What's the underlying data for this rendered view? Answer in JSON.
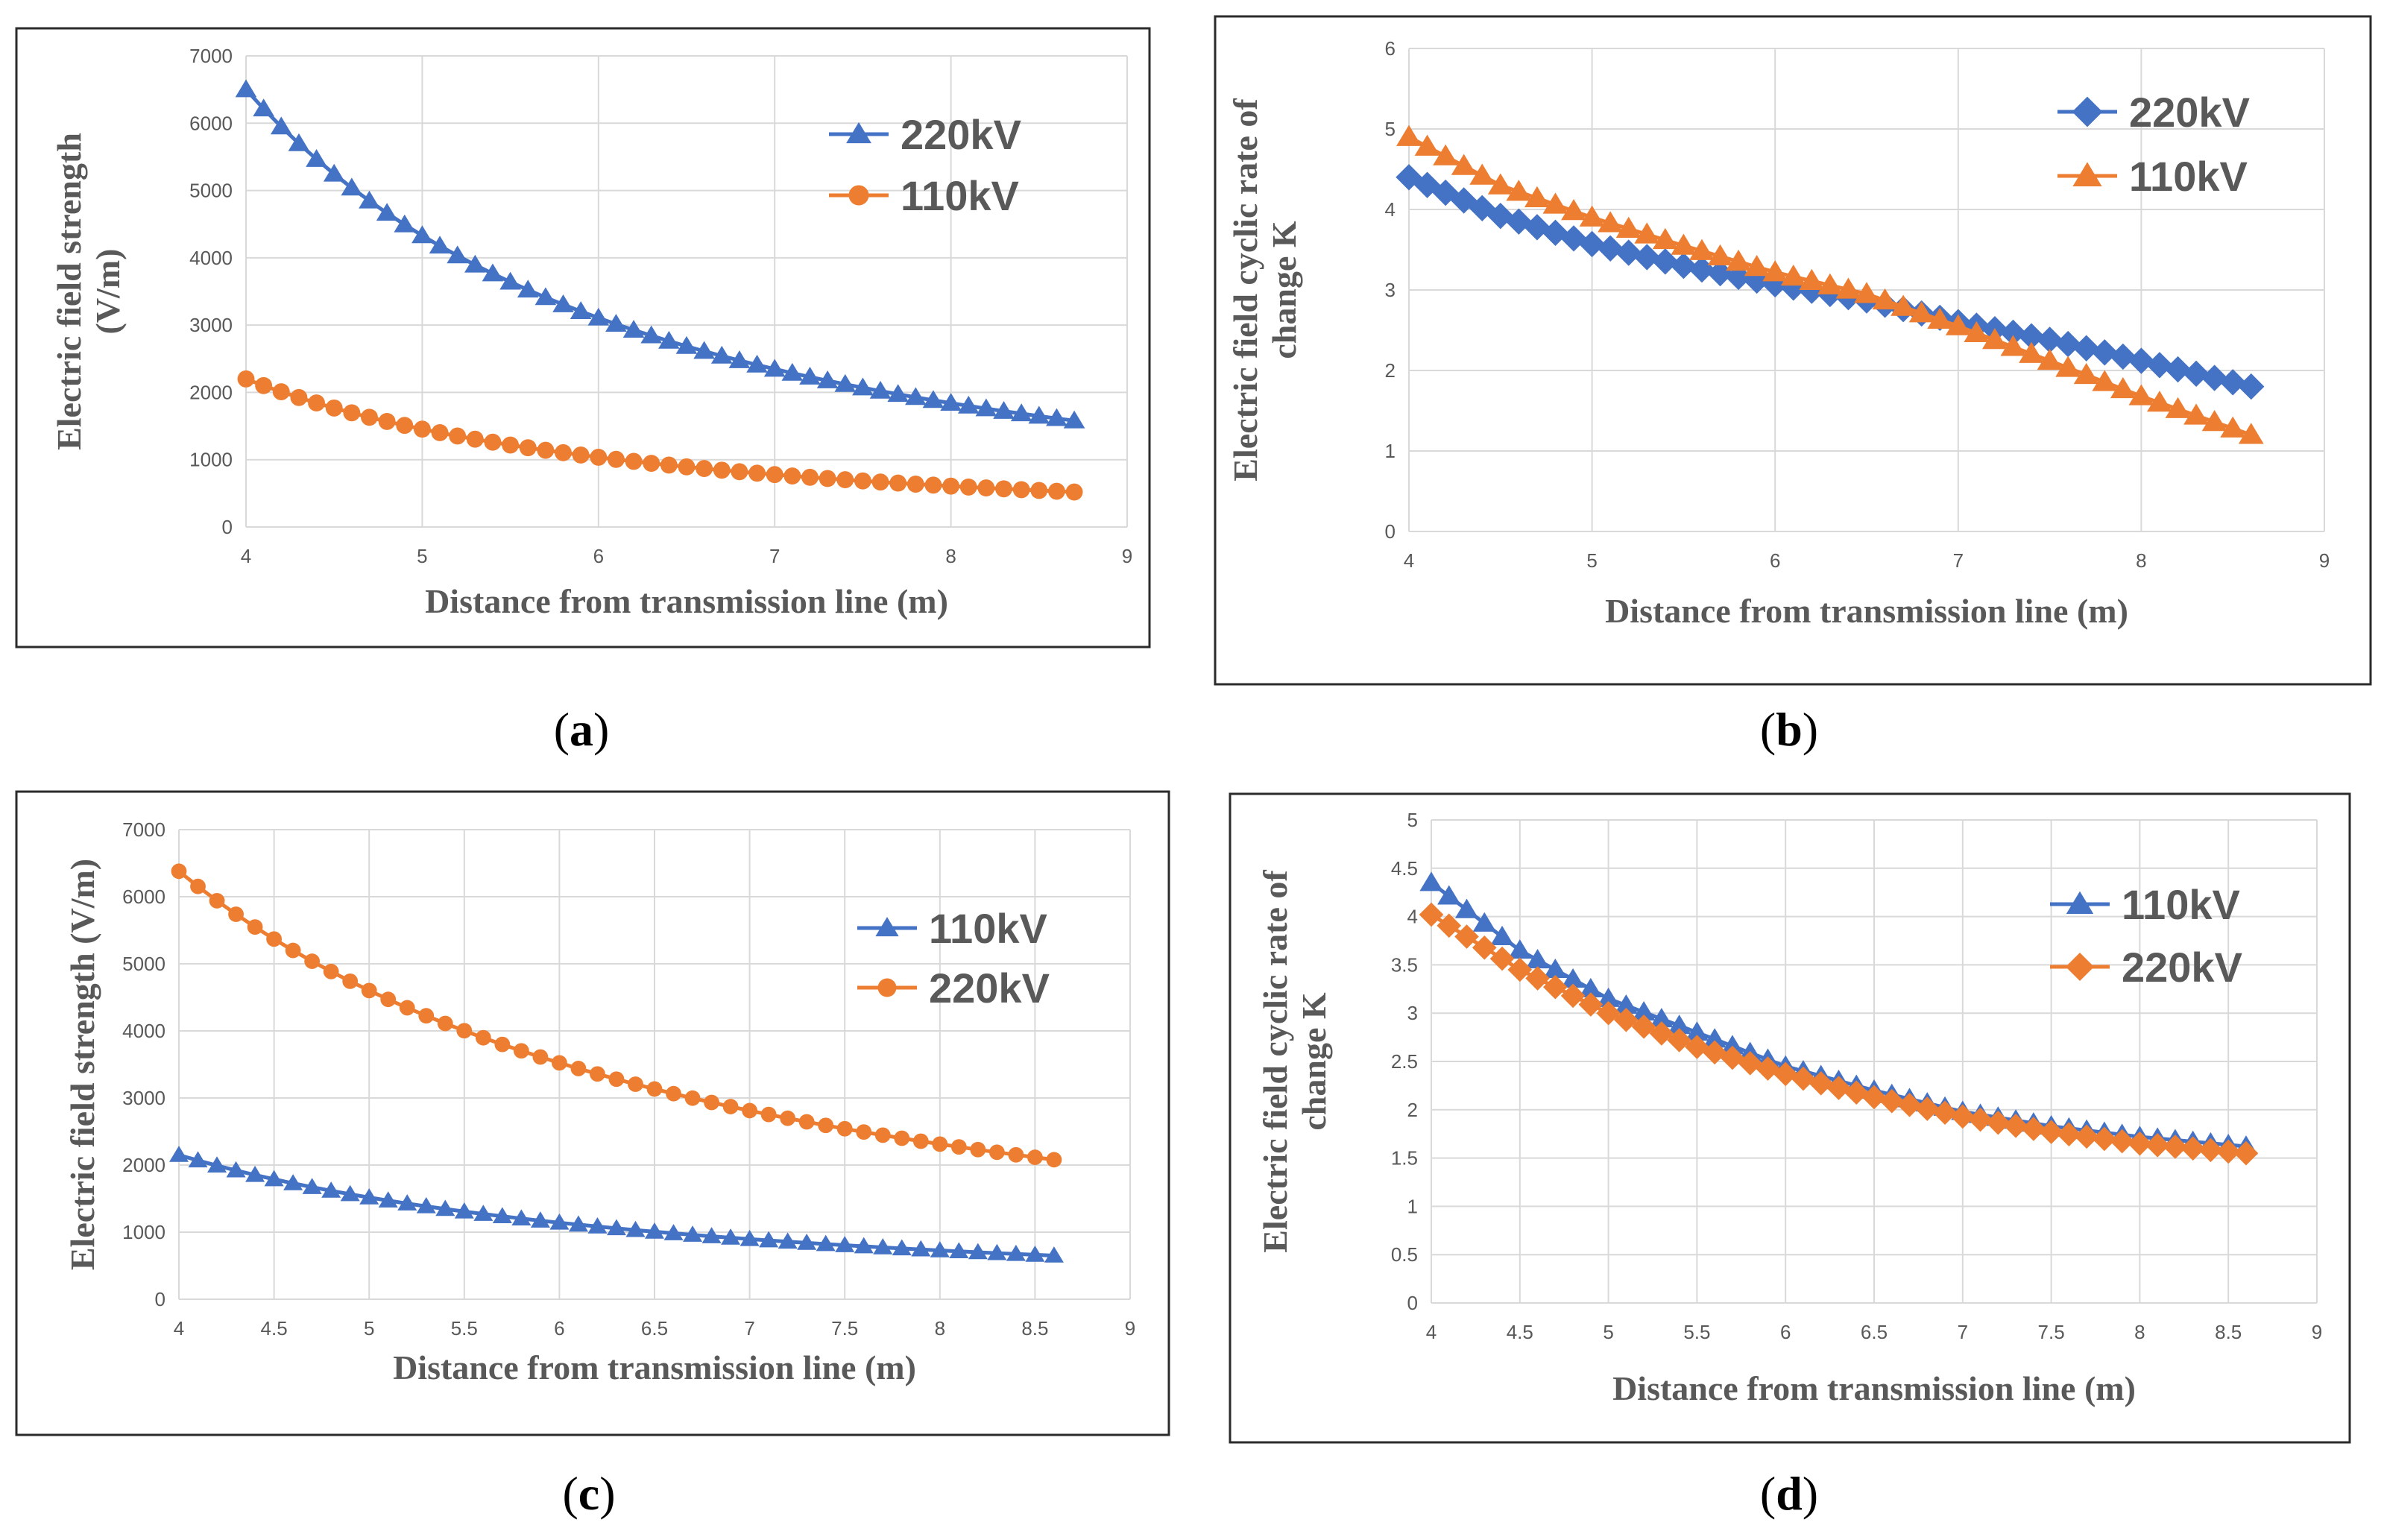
{
  "chart_data": [
    {
      "type": "line",
      "caption": "a",
      "xlabel": "Distance from transmission line (m)",
      "ylabel_lines": [
        "Electric field strength",
        "(V/m)"
      ],
      "xlim": [
        4,
        9
      ],
      "ylim": [
        0,
        7000
      ],
      "x_ticks": [
        4,
        5,
        6,
        7,
        8,
        9
      ],
      "y_ticks": [
        0,
        1000,
        2000,
        3000,
        4000,
        5000,
        6000,
        7000
      ],
      "grid": true,
      "legend_position": "top-right",
      "series": [
        {
          "name": "220kV",
          "color": "#4472C4",
          "marker": "triangle",
          "model": {
            "kind": "power",
            "x0": 4,
            "x1": 8.7,
            "y0": 6500,
            "y1": 1580,
            "step": 0.1
          }
        },
        {
          "name": "110kV",
          "color": "#ED7D31",
          "marker": "circle",
          "model": {
            "kind": "power",
            "x0": 4,
            "x1": 8.7,
            "y0": 2200,
            "y1": 520,
            "step": 0.1
          }
        }
      ]
    },
    {
      "type": "line",
      "caption": "b",
      "xlabel": "Distance from transmission line (m)",
      "ylabel_lines": [
        "Electric field cyclic rate of",
        "change K"
      ],
      "xlim": [
        4,
        9
      ],
      "ylim": [
        0,
        6
      ],
      "x_ticks": [
        4,
        5,
        6,
        7,
        8,
        9
      ],
      "y_ticks": [
        0,
        1,
        2,
        3,
        4,
        5,
        6
      ],
      "grid": true,
      "legend_position": "top-right",
      "series": [
        {
          "name": "220kV",
          "color": "#4472C4",
          "marker": "diamond",
          "model": {
            "kind": "points",
            "x0": 4,
            "x1": 8.6,
            "step": 0.1,
            "points": [
              [
                4,
                4.4
              ],
              [
                4.5,
                3.92
              ],
              [
                5,
                3.57
              ],
              [
                5.5,
                3.3
              ],
              [
                6,
                3.07
              ],
              [
                6.5,
                2.87
              ],
              [
                7,
                2.6
              ],
              [
                7.5,
                2.38
              ],
              [
                8,
                2.12
              ],
              [
                8.6,
                1.8
              ]
            ]
          }
        },
        {
          "name": "110kV",
          "color": "#ED7D31",
          "marker": "triangle",
          "model": {
            "kind": "points",
            "x0": 4,
            "x1": 8.6,
            "step": 0.1,
            "points": [
              [
                4,
                4.9
              ],
              [
                4.5,
                4.3
              ],
              [
                5,
                3.9
              ],
              [
                5.5,
                3.55
              ],
              [
                6,
                3.22
              ],
              [
                6.5,
                2.95
              ],
              [
                7,
                2.55
              ],
              [
                7.5,
                2.12
              ],
              [
                8,
                1.68
              ],
              [
                8.6,
                1.2
              ]
            ]
          }
        }
      ]
    },
    {
      "type": "line",
      "caption": "c",
      "xlabel": "Distance from transmission line (m)",
      "ylabel_lines": [
        "Electric field strength (V/m)"
      ],
      "xlim": [
        4,
        9
      ],
      "ylim": [
        0,
        7000
      ],
      "x_ticks": [
        4,
        4.5,
        5,
        5.5,
        6,
        6.5,
        7,
        7.5,
        8,
        8.5,
        9
      ],
      "y_ticks": [
        0,
        1000,
        2000,
        3000,
        4000,
        5000,
        6000,
        7000
      ],
      "grid": true,
      "legend_position": "top-right",
      "series": [
        {
          "name": "110kV",
          "color": "#4472C4",
          "marker": "triangle",
          "model": {
            "kind": "power",
            "x0": 4,
            "x1": 8.6,
            "y0": 2150,
            "y1": 650,
            "step": 0.1
          }
        },
        {
          "name": "220kV",
          "color": "#ED7D31",
          "marker": "circle",
          "model": {
            "kind": "power",
            "x0": 4,
            "x1": 8.6,
            "y0": 6380,
            "y1": 2080,
            "step": 0.1
          }
        }
      ]
    },
    {
      "type": "line",
      "caption": "d",
      "xlabel": "Distance from transmission line (m)",
      "ylabel_lines": [
        "Electric field cyclic rate of",
        "change K"
      ],
      "xlim": [
        4,
        9
      ],
      "ylim": [
        0,
        5
      ],
      "x_ticks": [
        4,
        4.5,
        5,
        5.5,
        6,
        6.5,
        7,
        7.5,
        8,
        8.5,
        9
      ],
      "y_ticks": [
        0,
        0.5,
        1,
        1.5,
        2,
        2.5,
        3,
        3.5,
        4,
        4.5,
        5
      ],
      "grid": true,
      "legend_position": "top-right",
      "series": [
        {
          "name": "110kV",
          "color": "#4472C4",
          "marker": "triangle",
          "model": {
            "kind": "points",
            "x0": 4,
            "x1": 8.6,
            "step": 0.1,
            "points": [
              [
                4,
                4.35
              ],
              [
                4.5,
                3.65
              ],
              [
                5,
                3.15
              ],
              [
                5.5,
                2.8
              ],
              [
                6,
                2.45
              ],
              [
                6.5,
                2.2
              ],
              [
                7,
                1.98
              ],
              [
                7.5,
                1.83
              ],
              [
                8,
                1.72
              ],
              [
                8.6,
                1.62
              ]
            ]
          }
        },
        {
          "name": "220kV",
          "color": "#ED7D31",
          "marker": "diamond",
          "model": {
            "kind": "points",
            "x0": 4,
            "x1": 8.6,
            "step": 0.1,
            "points": [
              [
                4,
                4.02
              ],
              [
                4.5,
                3.45
              ],
              [
                5,
                3.0
              ],
              [
                5.5,
                2.65
              ],
              [
                6,
                2.37
              ],
              [
                6.5,
                2.13
              ],
              [
                7,
                1.93
              ],
              [
                7.5,
                1.77
              ],
              [
                8,
                1.65
              ],
              [
                8.6,
                1.55
              ]
            ]
          }
        }
      ]
    }
  ]
}
